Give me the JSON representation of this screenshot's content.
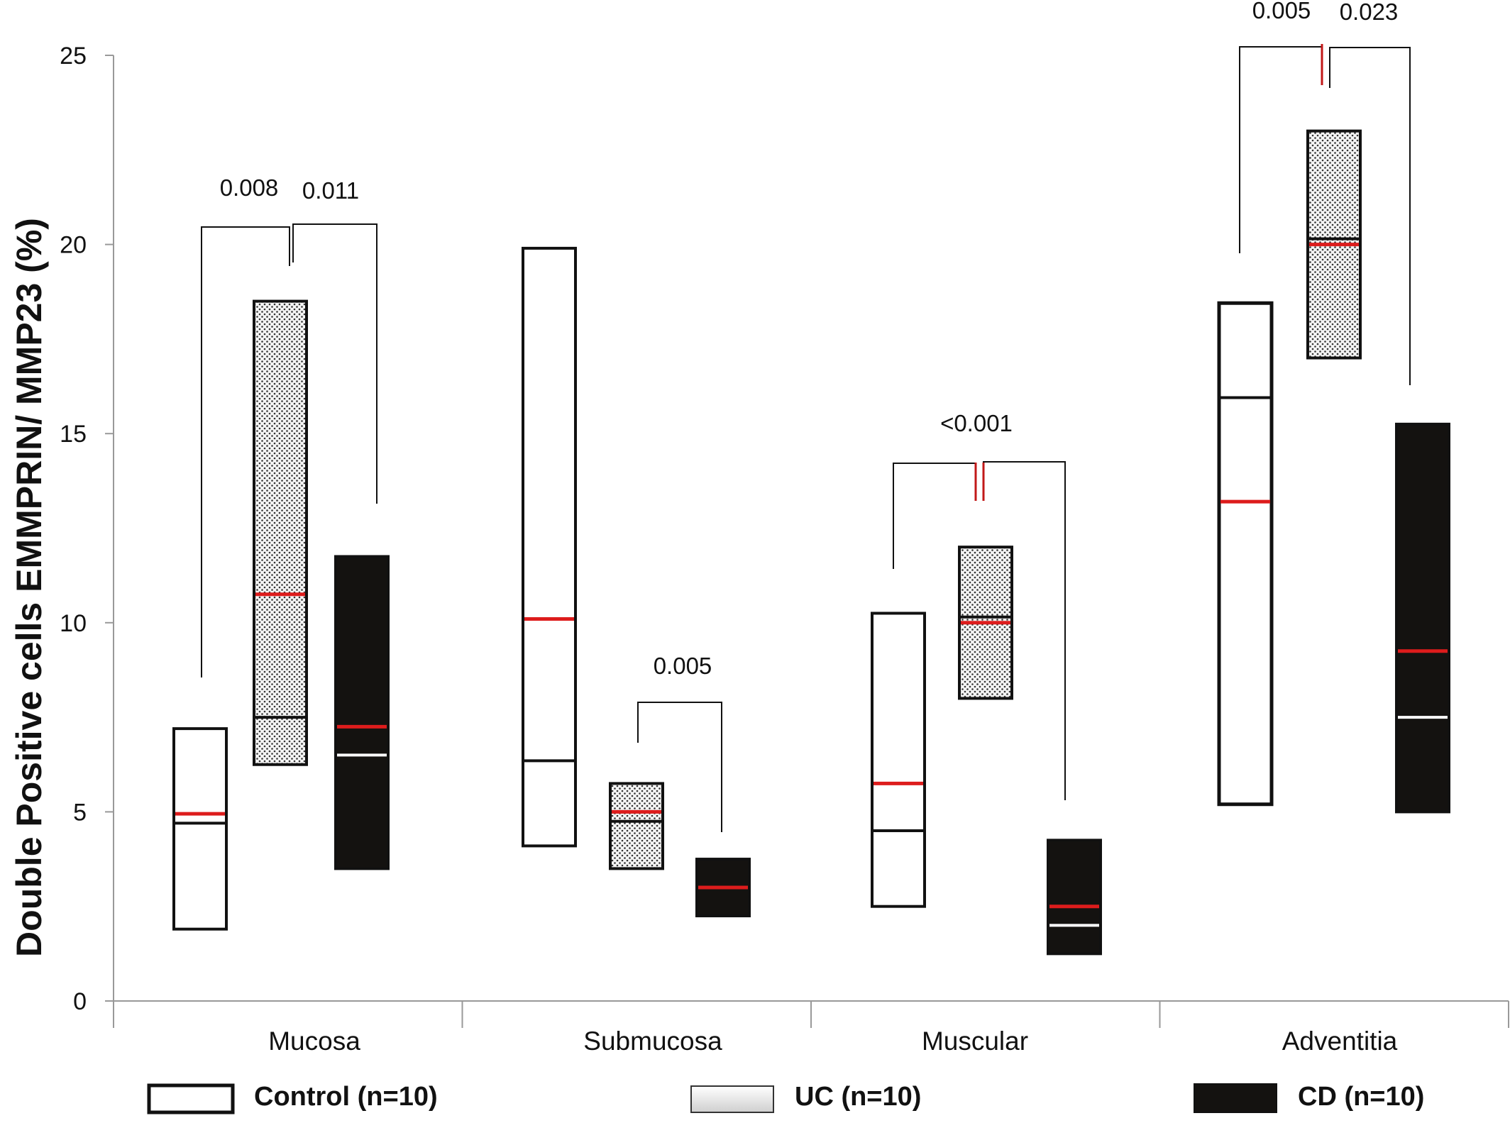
{
  "chart_data": {
    "type": "box",
    "ylabel": "Double Positive  cells EMMPRIN/ MMP23  (%)",
    "ylim": [
      0,
      25
    ],
    "yticks": [
      "0",
      "5",
      "10",
      "15",
      "20",
      "25"
    ],
    "categories": [
      "Mucosa",
      "Submucosa",
      "Muscular",
      "Adventitia"
    ],
    "legend_position": "bottom",
    "mean_color": "#dd1c1c",
    "series": [
      {
        "name": "Control (n=10)",
        "style": "outline",
        "fill": "#ffffff",
        "boxes": [
          {
            "low": 1.9,
            "high": 7.2,
            "median": 4.7,
            "mean": 4.95
          },
          {
            "low": 4.1,
            "high": 19.9,
            "median": 6.35,
            "mean": 10.1
          },
          {
            "low": 2.5,
            "high": 10.25,
            "median": 4.5,
            "mean": 5.75
          },
          {
            "low": 5.2,
            "high": 18.45,
            "median": 15.95,
            "mean": 13.2
          }
        ]
      },
      {
        "name": "UC (n=10)",
        "style": "dotted",
        "fill": "#f2f2f2",
        "boxes": [
          {
            "low": 6.25,
            "high": 18.5,
            "median": 7.5,
            "mean": 10.75
          },
          {
            "low": 3.5,
            "high": 5.75,
            "median": 4.75,
            "mean": 5.0
          },
          {
            "low": 8.0,
            "high": 12.0,
            "median": 10.15,
            "mean": 10.0
          },
          {
            "low": 17.0,
            "high": 23.0,
            "median": 20.15,
            "mean": 20.0
          }
        ]
      },
      {
        "name": "CD (n=10)",
        "style": "solid",
        "fill": "#141210",
        "boxes": [
          {
            "low": 3.5,
            "high": 11.75,
            "median": 6.5,
            "mean": 7.25
          },
          {
            "low": 2.25,
            "high": 3.75,
            "median": 3.0,
            "mean": 3.0
          },
          {
            "low": 1.25,
            "high": 4.25,
            "median": 2.0,
            "mean": 2.5
          },
          {
            "low": 5.0,
            "high": 15.25,
            "median": 7.5,
            "mean": 9.25
          }
        ]
      }
    ],
    "annotations": [
      {
        "category": 0,
        "compare": "Control vs UC",
        "p": "0.008"
      },
      {
        "category": 0,
        "compare": "UC vs CD",
        "p": "0.011"
      },
      {
        "category": 1,
        "compare": "UC vs CD",
        "p": "0.005"
      },
      {
        "category": 2,
        "compare": "Control vs CD",
        "p": "<0.001"
      },
      {
        "category": 3,
        "compare": "Control vs UC",
        "p": "0.005"
      },
      {
        "category": 3,
        "compare": "UC vs CD",
        "p": "0.023"
      }
    ]
  }
}
